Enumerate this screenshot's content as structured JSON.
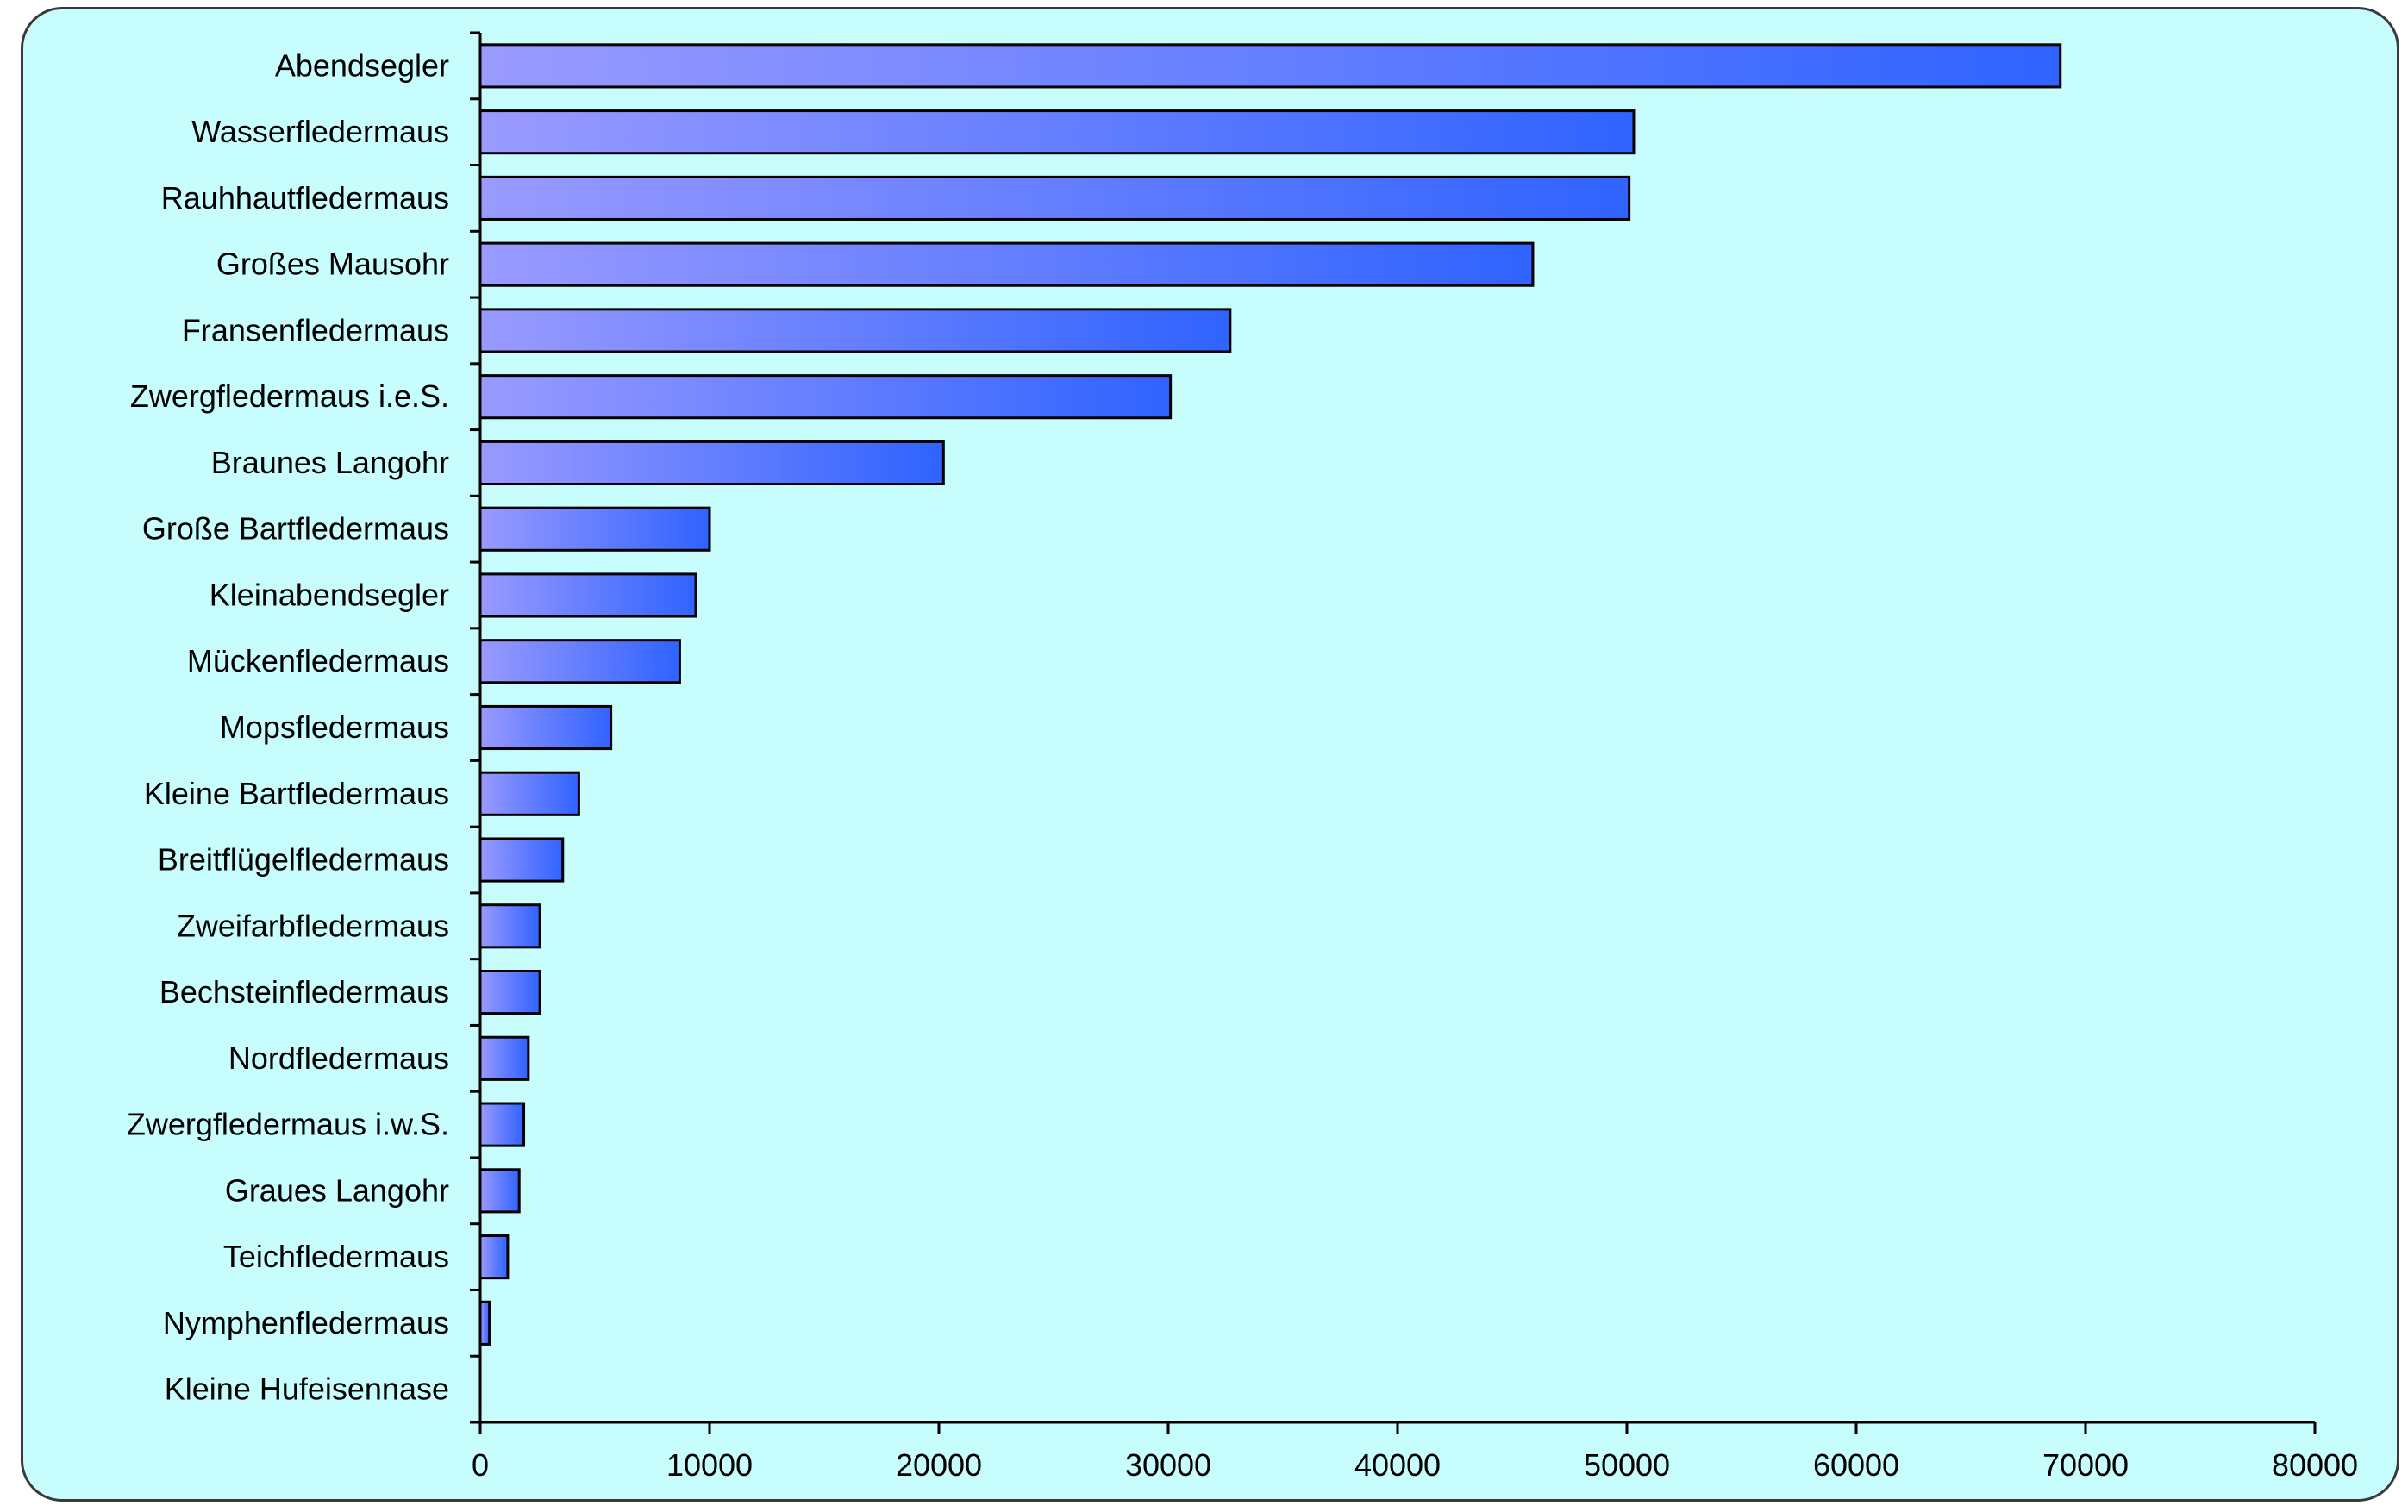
{
  "chart_data": {
    "type": "bar",
    "orientation": "horizontal",
    "title": "",
    "xlabel": "",
    "ylabel": "",
    "xlim": [
      0,
      80000
    ],
    "x_ticks": [
      "0",
      "10000",
      "20000",
      "30000",
      "40000",
      "50000",
      "60000",
      "70000",
      "80000"
    ],
    "grid": false,
    "categories": [
      "Abendsegler",
      "Wasserfledermaus",
      "Rauhhautfledermaus",
      "Großes Mausohr",
      "Fransenfledermaus",
      "Zwergfledermaus i.e.S.",
      "Braunes Langohr",
      "Große Bartfledermaus",
      "Kleinabendsegler",
      "Mückenfledermaus",
      "Mopsfledermaus",
      "Kleine Bartfledermaus",
      "Breitflügelfledermaus",
      "Zweifarbfledermaus",
      "Bechsteinfledermaus",
      "Nordfledermaus",
      "Zwergfledermaus i.w.S.",
      "Graues Langohr",
      "Teichfledermaus",
      "Nymphenfledermaus",
      "Kleine Hufeisennase"
    ],
    "values": [
      68900,
      50300,
      50100,
      45900,
      32700,
      30100,
      20200,
      10000,
      9400,
      8700,
      5700,
      4300,
      3600,
      2600,
      2600,
      2100,
      1900,
      1700,
      1200,
      400,
      0
    ],
    "colors": {
      "bar_start": "#9a9aff",
      "bar_end": "#2f63ff",
      "bar_border": "#000000",
      "background": "#c8fdfd"
    }
  }
}
